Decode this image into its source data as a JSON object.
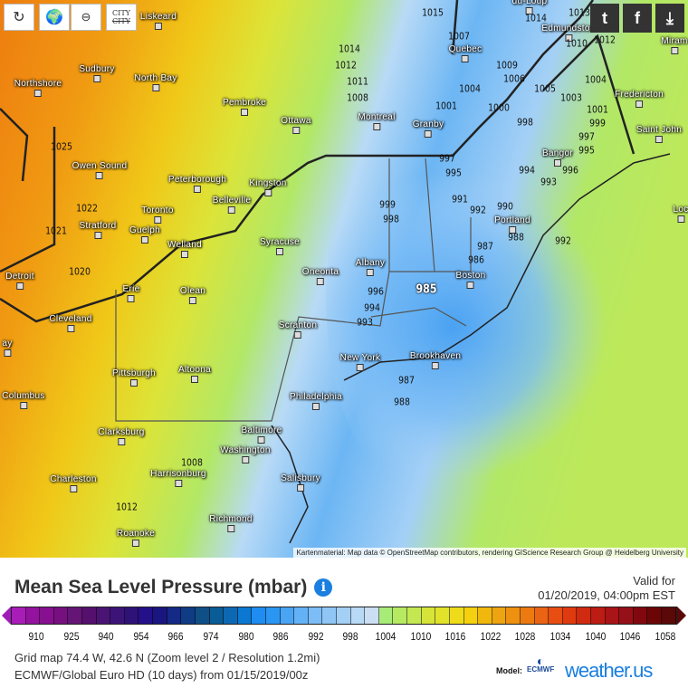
{
  "toolbar": {
    "reload_icon": "reload-icon",
    "location_icon": "globe-location-icon",
    "zoom_out_icon": "zoom-out-icon",
    "city_toggle_label": "CITY"
  },
  "share": {
    "twitter": "t",
    "facebook": "f",
    "download": "⤓"
  },
  "map": {
    "cities": [
      {
        "name": "Liskeard"
      },
      {
        "name": "Sudbury"
      },
      {
        "name": "North Bay"
      },
      {
        "name": "Northshore"
      },
      {
        "name": "Pembroke"
      },
      {
        "name": "Ottawa"
      },
      {
        "name": "Montreal"
      },
      {
        "name": "Granby"
      },
      {
        "name": "Owen Sound"
      },
      {
        "name": "Peterborough"
      },
      {
        "name": "Kingston"
      },
      {
        "name": "Belleville"
      },
      {
        "name": "Toronto"
      },
      {
        "name": "Guelph"
      },
      {
        "name": "Stratford"
      },
      {
        "name": "Welland"
      },
      {
        "name": "Syracuse"
      },
      {
        "name": "Oneonta"
      },
      {
        "name": "Albany"
      },
      {
        "name": "Detroit"
      },
      {
        "name": "Erie"
      },
      {
        "name": "Olean"
      },
      {
        "name": "Cleveland"
      },
      {
        "name": "Scranton"
      },
      {
        "name": "Boston"
      },
      {
        "name": "Portland"
      },
      {
        "name": "Bangor"
      },
      {
        "name": "Fredericton"
      },
      {
        "name": "Saint John"
      },
      {
        "name": "Edmundston"
      },
      {
        "name": "Quebec"
      },
      {
        "name": "du-Loup"
      },
      {
        "name": "New York"
      },
      {
        "name": "Brookhaven"
      },
      {
        "name": "Pittsburgh"
      },
      {
        "name": "Altoona"
      },
      {
        "name": "Philadelphia"
      },
      {
        "name": "Columbus"
      },
      {
        "name": "Clarksburg"
      },
      {
        "name": "Baltimore"
      },
      {
        "name": "Washington"
      },
      {
        "name": "Harrisonburg"
      },
      {
        "name": "Charleston"
      },
      {
        "name": "Salisbury"
      },
      {
        "name": "Richmond"
      },
      {
        "name": "Roanoke"
      },
      {
        "name": "Miram"
      },
      {
        "name": "Loc"
      },
      {
        "name": "ay"
      }
    ],
    "isobars": [
      "1015",
      "1014",
      "1013",
      "1012",
      "1010",
      "1007",
      "1014",
      "1012",
      "1011",
      "1008",
      "1009",
      "1006",
      "1004",
      "1005",
      "1003",
      "1004",
      "1001",
      "1000",
      "998",
      "1001",
      "999",
      "997",
      "995",
      "1025",
      "1022",
      "1021",
      "1020",
      "997",
      "995",
      "994",
      "993",
      "996",
      "999",
      "998",
      "991",
      "992",
      "990",
      "988",
      "987",
      "986",
      "992",
      "985",
      "996",
      "994",
      "993",
      "987",
      "988",
      "1008",
      "1012"
    ],
    "attribution": "Kartenmaterial: Map data © OpenStreetMap contributors, rendering GIScience Research Group @ Heidelberg University"
  },
  "legend": {
    "title": "Mean Sea Level Pressure (mbar)",
    "valid_label": "Valid for",
    "valid_time": "01/20/2019, 04:00pm EST",
    "ticks": [
      "910",
      "925",
      "940",
      "954",
      "966",
      "974",
      "980",
      "986",
      "992",
      "998",
      "1004",
      "1010",
      "1016",
      "1022",
      "1028",
      "1034",
      "1040",
      "1046",
      "1058"
    ],
    "colors": [
      "#a81cb8",
      "#94139e",
      "#861090",
      "#76107f",
      "#641575",
      "#55106e",
      "#4a1474",
      "#3c1478",
      "#2e1278",
      "#241088",
      "#1a1680",
      "#142a86",
      "#0f3c84",
      "#104f86",
      "#0a5c96",
      "#0d68b4",
      "#0c78d2",
      "#1e8cf0",
      "#2a96f2",
      "#4aa4f4",
      "#64b2f6",
      "#7cbdf6",
      "#90c6f6",
      "#a4d0f6",
      "#b8daf6",
      "#ccdef4",
      "#a8ec78",
      "#b6ea62",
      "#c4e852",
      "#d6e43a",
      "#e2e22a",
      "#eedc1a",
      "#f4d00e",
      "#f0b80c",
      "#eea410",
      "#ee9010",
      "#ec7a10",
      "#ea6414",
      "#e84e12",
      "#e03a10",
      "#d02a10",
      "#bc1c14",
      "#a81418",
      "#961018",
      "#820810",
      "#6c0606",
      "#5a0808"
    ],
    "grid_info": "Grid map 74.4 W, 42.6 N (Zoom level 2 / Resolution 1.2mi)",
    "model_info": "ECMWF/Global Euro HD (10 days) from 01/15/2019/00z",
    "model_label": "Model:",
    "ecmwf_label": "ECMWF",
    "brand": "weather.us"
  }
}
